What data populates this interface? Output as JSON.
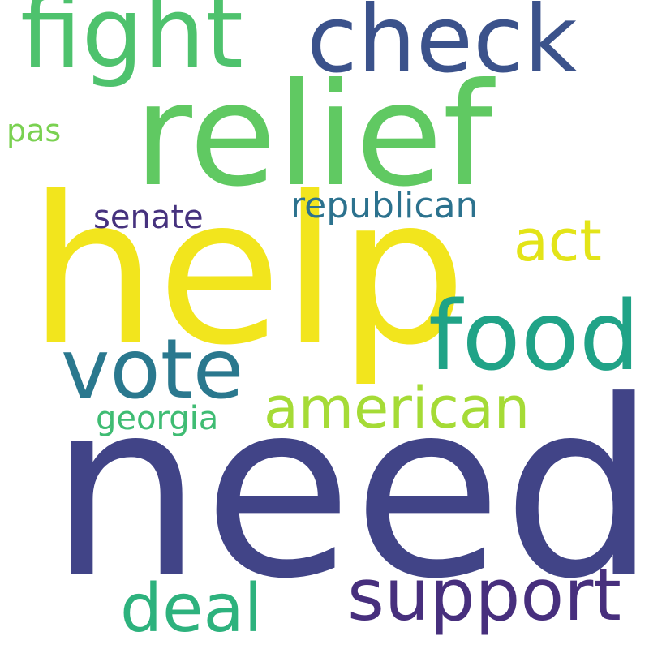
{
  "words": {
    "need": {
      "text": "need",
      "color": "#414487"
    },
    "help": {
      "text": "help",
      "color": "#f2e51d"
    },
    "relief": {
      "text": "relief",
      "color": "#60c962"
    },
    "fight": {
      "text": "fight",
      "color": "#4ec26d"
    },
    "check": {
      "text": "check",
      "color": "#3b528b"
    },
    "food": {
      "text": "food",
      "color": "#20a387"
    },
    "vote": {
      "text": "vote",
      "color": "#2a788e"
    },
    "support": {
      "text": "support",
      "color": "#472f7d"
    },
    "deal": {
      "text": "deal",
      "color": "#2db27d"
    },
    "american": {
      "text": "american",
      "color": "#a5db36"
    },
    "act": {
      "text": "act",
      "color": "#e3e418"
    },
    "republican": {
      "text": "republican",
      "color": "#2c728e"
    },
    "senate": {
      "text": "senate",
      "color": "#46327e"
    },
    "georgia": {
      "text": "georgia",
      "color": "#3fbc73"
    },
    "pas": {
      "text": "pas",
      "color": "#7ad151"
    }
  }
}
